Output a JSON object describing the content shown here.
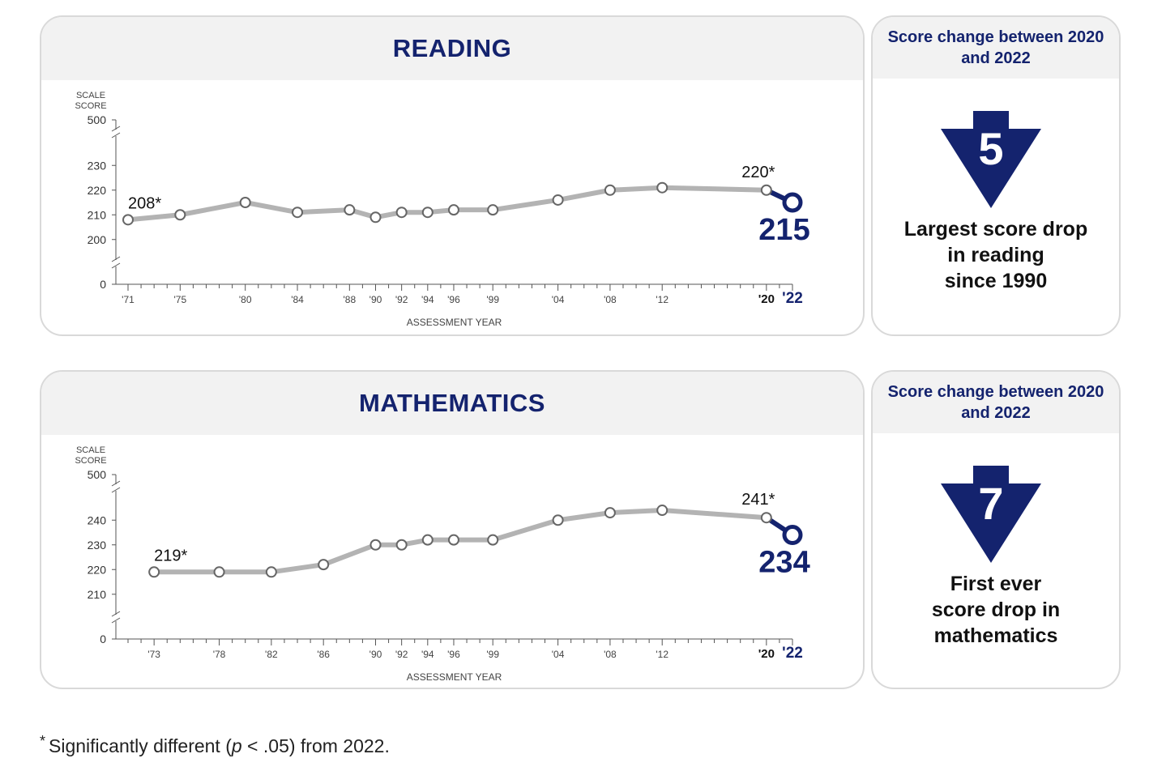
{
  "reading": {
    "title": "READING",
    "side_header": "Score change between 2020 and 2022",
    "drop": "5",
    "side_text": [
      "Largest score drop",
      "in reading",
      "since 1990"
    ]
  },
  "math": {
    "title": "MATHEMATICS",
    "side_header": "Score change between 2020 and 2022",
    "drop": "7",
    "side_text": [
      "First ever",
      "score drop in",
      "mathematics"
    ]
  },
  "footnote": {
    "star": "*",
    "text_before": "Significantly different (",
    "p": "p",
    "text_after": " < .05) from 2022."
  },
  "chart_data": [
    {
      "type": "line",
      "title": "READING",
      "ylabel": "SCALE SCORE",
      "xlabel": "ASSESSMENT YEAR",
      "y_ticks": [
        "500",
        "230",
        "220",
        "210",
        "200",
        "0"
      ],
      "ylim": [
        195,
        235
      ],
      "axis_break": true,
      "x_range": [
        1971,
        2022
      ],
      "x": [
        1971,
        1975,
        1980,
        1984,
        1988,
        1990,
        1992,
        1994,
        1996,
        1999,
        2004,
        2008,
        2012,
        2020,
        2022
      ],
      "x_tick_labels": [
        "'71",
        "'75",
        "'80",
        "'84",
        "'88",
        "'90",
        "'92",
        "'94",
        "'96",
        "'99",
        "'04",
        "'08",
        "'12",
        "'20",
        "'22"
      ],
      "series": [
        {
          "values": [
            208,
            210,
            215,
            211,
            212,
            209,
            211,
            211,
            212,
            212,
            216,
            220,
            221,
            220,
            215
          ]
        }
      ],
      "annotations": [
        {
          "x": 1971,
          "label": "208*"
        },
        {
          "x": 2020,
          "label": "220*"
        },
        {
          "x": 2022,
          "label": "215"
        }
      ],
      "colors": {
        "line": "#b3b3b3",
        "highlight": "#14236e"
      }
    },
    {
      "type": "line",
      "title": "MATHEMATICS",
      "ylabel": "SCALE SCORE",
      "xlabel": "ASSESSMENT YEAR",
      "y_ticks": [
        "500",
        "240",
        "230",
        "220",
        "210",
        "0"
      ],
      "ylim": [
        205,
        245
      ],
      "axis_break": true,
      "x_range": [
        1971,
        2022
      ],
      "x": [
        1973,
        1978,
        1982,
        1986,
        1990,
        1992,
        1994,
        1996,
        1999,
        2004,
        2008,
        2012,
        2020,
        2022
      ],
      "x_tick_labels": [
        "'73",
        "'78",
        "'82",
        "'86",
        "'90",
        "'92",
        "'94",
        "'96",
        "'99",
        "'04",
        "'08",
        "'12",
        "'20",
        "'22"
      ],
      "series": [
        {
          "values": [
            219,
            219,
            219,
            222,
            230,
            230,
            232,
            232,
            232,
            240,
            243,
            244,
            241,
            234
          ]
        }
      ],
      "annotations": [
        {
          "x": 1973,
          "label": "219*"
        },
        {
          "x": 2020,
          "label": "241*"
        },
        {
          "x": 2022,
          "label": "234"
        }
      ],
      "colors": {
        "line": "#b3b3b3",
        "highlight": "#14236e"
      }
    }
  ]
}
